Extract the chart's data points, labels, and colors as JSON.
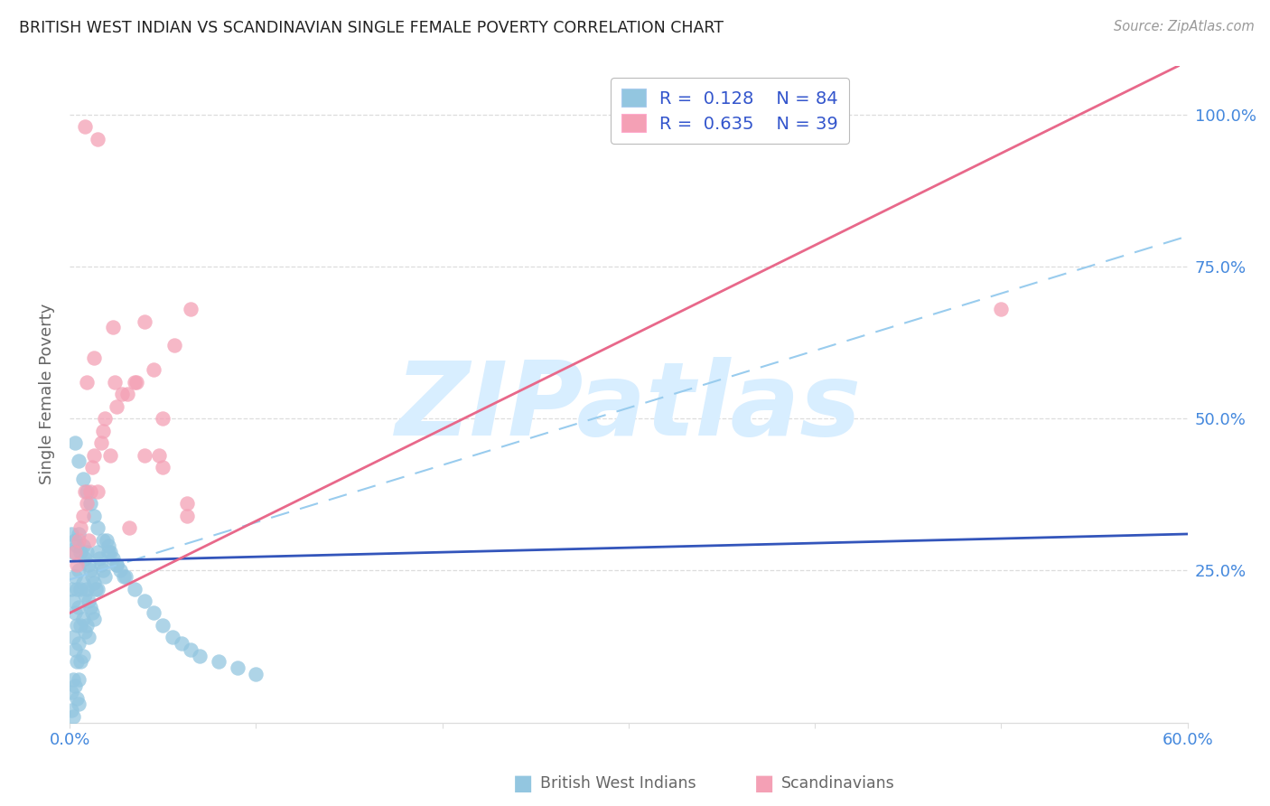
{
  "title": "BRITISH WEST INDIAN VS SCANDINAVIAN SINGLE FEMALE POVERTY CORRELATION CHART",
  "source": "Source: ZipAtlas.com",
  "ylabel": "Single Female Poverty",
  "xlim": [
    0.0,
    0.6
  ],
  "ylim": [
    0.0,
    1.08
  ],
  "r1": 0.128,
  "n1": 84,
  "r2": 0.635,
  "n2": 39,
  "color_bwi": "#93C6E0",
  "color_scan": "#F4A0B5",
  "line_bwi_color": "#3355BB",
  "line_scan_color": "#E8688A",
  "dash_color": "#99CCEE",
  "watermark_text": "ZIPatlas",
  "watermark_color": "#D8EEFF",
  "legend1": "British West Indians",
  "legend2": "Scandinavians",
  "bg_color": "#FFFFFF",
  "title_color": "#222222",
  "tick_color": "#4488DD",
  "label_color": "#666666",
  "grid_color": "#DDDDDD",
  "legend_box_color": "#BBBBBB",
  "legend_text_color": "#222222",
  "legend_val_color": "#3355CC",
  "bwi_x": [
    0.001,
    0.001,
    0.001,
    0.002,
    0.002,
    0.002,
    0.002,
    0.003,
    0.003,
    0.003,
    0.003,
    0.003,
    0.004,
    0.004,
    0.004,
    0.004,
    0.004,
    0.005,
    0.005,
    0.005,
    0.005,
    0.005,
    0.005,
    0.006,
    0.006,
    0.006,
    0.006,
    0.007,
    0.007,
    0.007,
    0.007,
    0.008,
    0.008,
    0.008,
    0.009,
    0.009,
    0.009,
    0.01,
    0.01,
    0.01,
    0.011,
    0.011,
    0.012,
    0.012,
    0.013,
    0.013,
    0.014,
    0.015,
    0.015,
    0.016,
    0.017,
    0.018,
    0.019,
    0.02,
    0.021,
    0.022,
    0.023,
    0.025,
    0.027,
    0.029,
    0.003,
    0.005,
    0.007,
    0.009,
    0.011,
    0.013,
    0.015,
    0.018,
    0.021,
    0.025,
    0.03,
    0.035,
    0.04,
    0.045,
    0.05,
    0.055,
    0.06,
    0.065,
    0.07,
    0.08,
    0.09,
    0.1,
    0.001,
    0.002
  ],
  "bwi_y": [
    0.31,
    0.22,
    0.05,
    0.28,
    0.2,
    0.14,
    0.07,
    0.3,
    0.24,
    0.18,
    0.12,
    0.06,
    0.29,
    0.22,
    0.16,
    0.1,
    0.04,
    0.31,
    0.25,
    0.19,
    0.13,
    0.07,
    0.03,
    0.28,
    0.22,
    0.16,
    0.1,
    0.29,
    0.23,
    0.17,
    0.11,
    0.27,
    0.21,
    0.15,
    0.28,
    0.22,
    0.16,
    0.26,
    0.2,
    0.14,
    0.25,
    0.19,
    0.24,
    0.18,
    0.23,
    0.17,
    0.22,
    0.28,
    0.22,
    0.27,
    0.26,
    0.25,
    0.24,
    0.3,
    0.29,
    0.28,
    0.27,
    0.26,
    0.25,
    0.24,
    0.46,
    0.43,
    0.4,
    0.38,
    0.36,
    0.34,
    0.32,
    0.3,
    0.28,
    0.26,
    0.24,
    0.22,
    0.2,
    0.18,
    0.16,
    0.14,
    0.13,
    0.12,
    0.11,
    0.1,
    0.09,
    0.08,
    0.02,
    0.01
  ],
  "scan_x": [
    0.003,
    0.004,
    0.005,
    0.006,
    0.007,
    0.008,
    0.009,
    0.01,
    0.011,
    0.012,
    0.013,
    0.015,
    0.017,
    0.019,
    0.022,
    0.025,
    0.028,
    0.032,
    0.036,
    0.04,
    0.045,
    0.05,
    0.056,
    0.063,
    0.009,
    0.013,
    0.018,
    0.024,
    0.031,
    0.04,
    0.05,
    0.063,
    0.008,
    0.015,
    0.023,
    0.035,
    0.048,
    0.065,
    0.5
  ],
  "scan_y": [
    0.28,
    0.26,
    0.3,
    0.32,
    0.34,
    0.38,
    0.36,
    0.3,
    0.38,
    0.42,
    0.44,
    0.38,
    0.46,
    0.5,
    0.44,
    0.52,
    0.54,
    0.32,
    0.56,
    0.44,
    0.58,
    0.5,
    0.62,
    0.34,
    0.56,
    0.6,
    0.48,
    0.56,
    0.54,
    0.66,
    0.42,
    0.36,
    0.98,
    0.96,
    0.65,
    0.56,
    0.44,
    0.68,
    0.68
  ],
  "bwi_line_x0": 0.0,
  "bwi_line_y0": 0.265,
  "bwi_line_x1": 0.6,
  "bwi_line_y1": 0.31,
  "scan_line_x0": 0.0,
  "scan_line_y0": 0.18,
  "scan_line_x1": 0.595,
  "scan_line_y1": 1.08,
  "dash_line_x0": 0.0,
  "dash_line_y0": 0.235,
  "dash_line_x1": 0.6,
  "dash_line_y1": 0.8
}
